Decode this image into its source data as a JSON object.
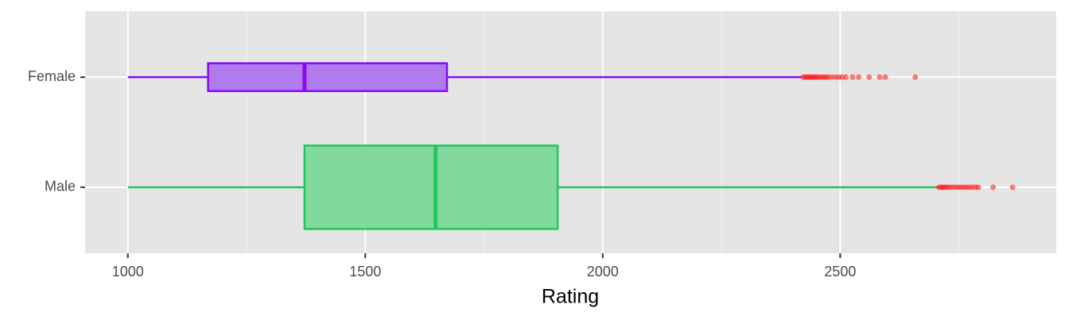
{
  "chart_data": {
    "type": "boxplot",
    "x_label": "Rating",
    "categories": [
      "Male",
      "Female"
    ],
    "boxes": [
      {
        "low": 1000,
        "q1": 1372,
        "median": 1648,
        "q3": 1905,
        "high": 2707,
        "color": "#22c55e",
        "fill": "#82d99e",
        "outliers": [
          2708,
          2712,
          2716,
          2720,
          2725,
          2730,
          2736,
          2742,
          2748,
          2754,
          2760,
          2766,
          2772,
          2778,
          2785,
          2791,
          2822,
          2863
        ]
      },
      {
        "low": 1000,
        "q1": 1169,
        "median": 1372,
        "q3": 1672,
        "high": 2419,
        "color": "#8a0bf0",
        "fill": "#b07bee",
        "outliers": [
          2422,
          2426,
          2430,
          2434,
          2438,
          2442,
          2446,
          2450,
          2455,
          2460,
          2465,
          2470,
          2475,
          2482,
          2490,
          2497,
          2504,
          2512,
          2526,
          2539,
          2561,
          2583,
          2595,
          2658
        ]
      }
    ],
    "outlier_color": "#ff0000",
    "xlim": [
      910,
      2955
    ],
    "xticks": [
      1000,
      1500,
      2000,
      2500
    ],
    "minor_xticks": [
      1250,
      1750,
      2250,
      2750
    ],
    "grid": true
  }
}
